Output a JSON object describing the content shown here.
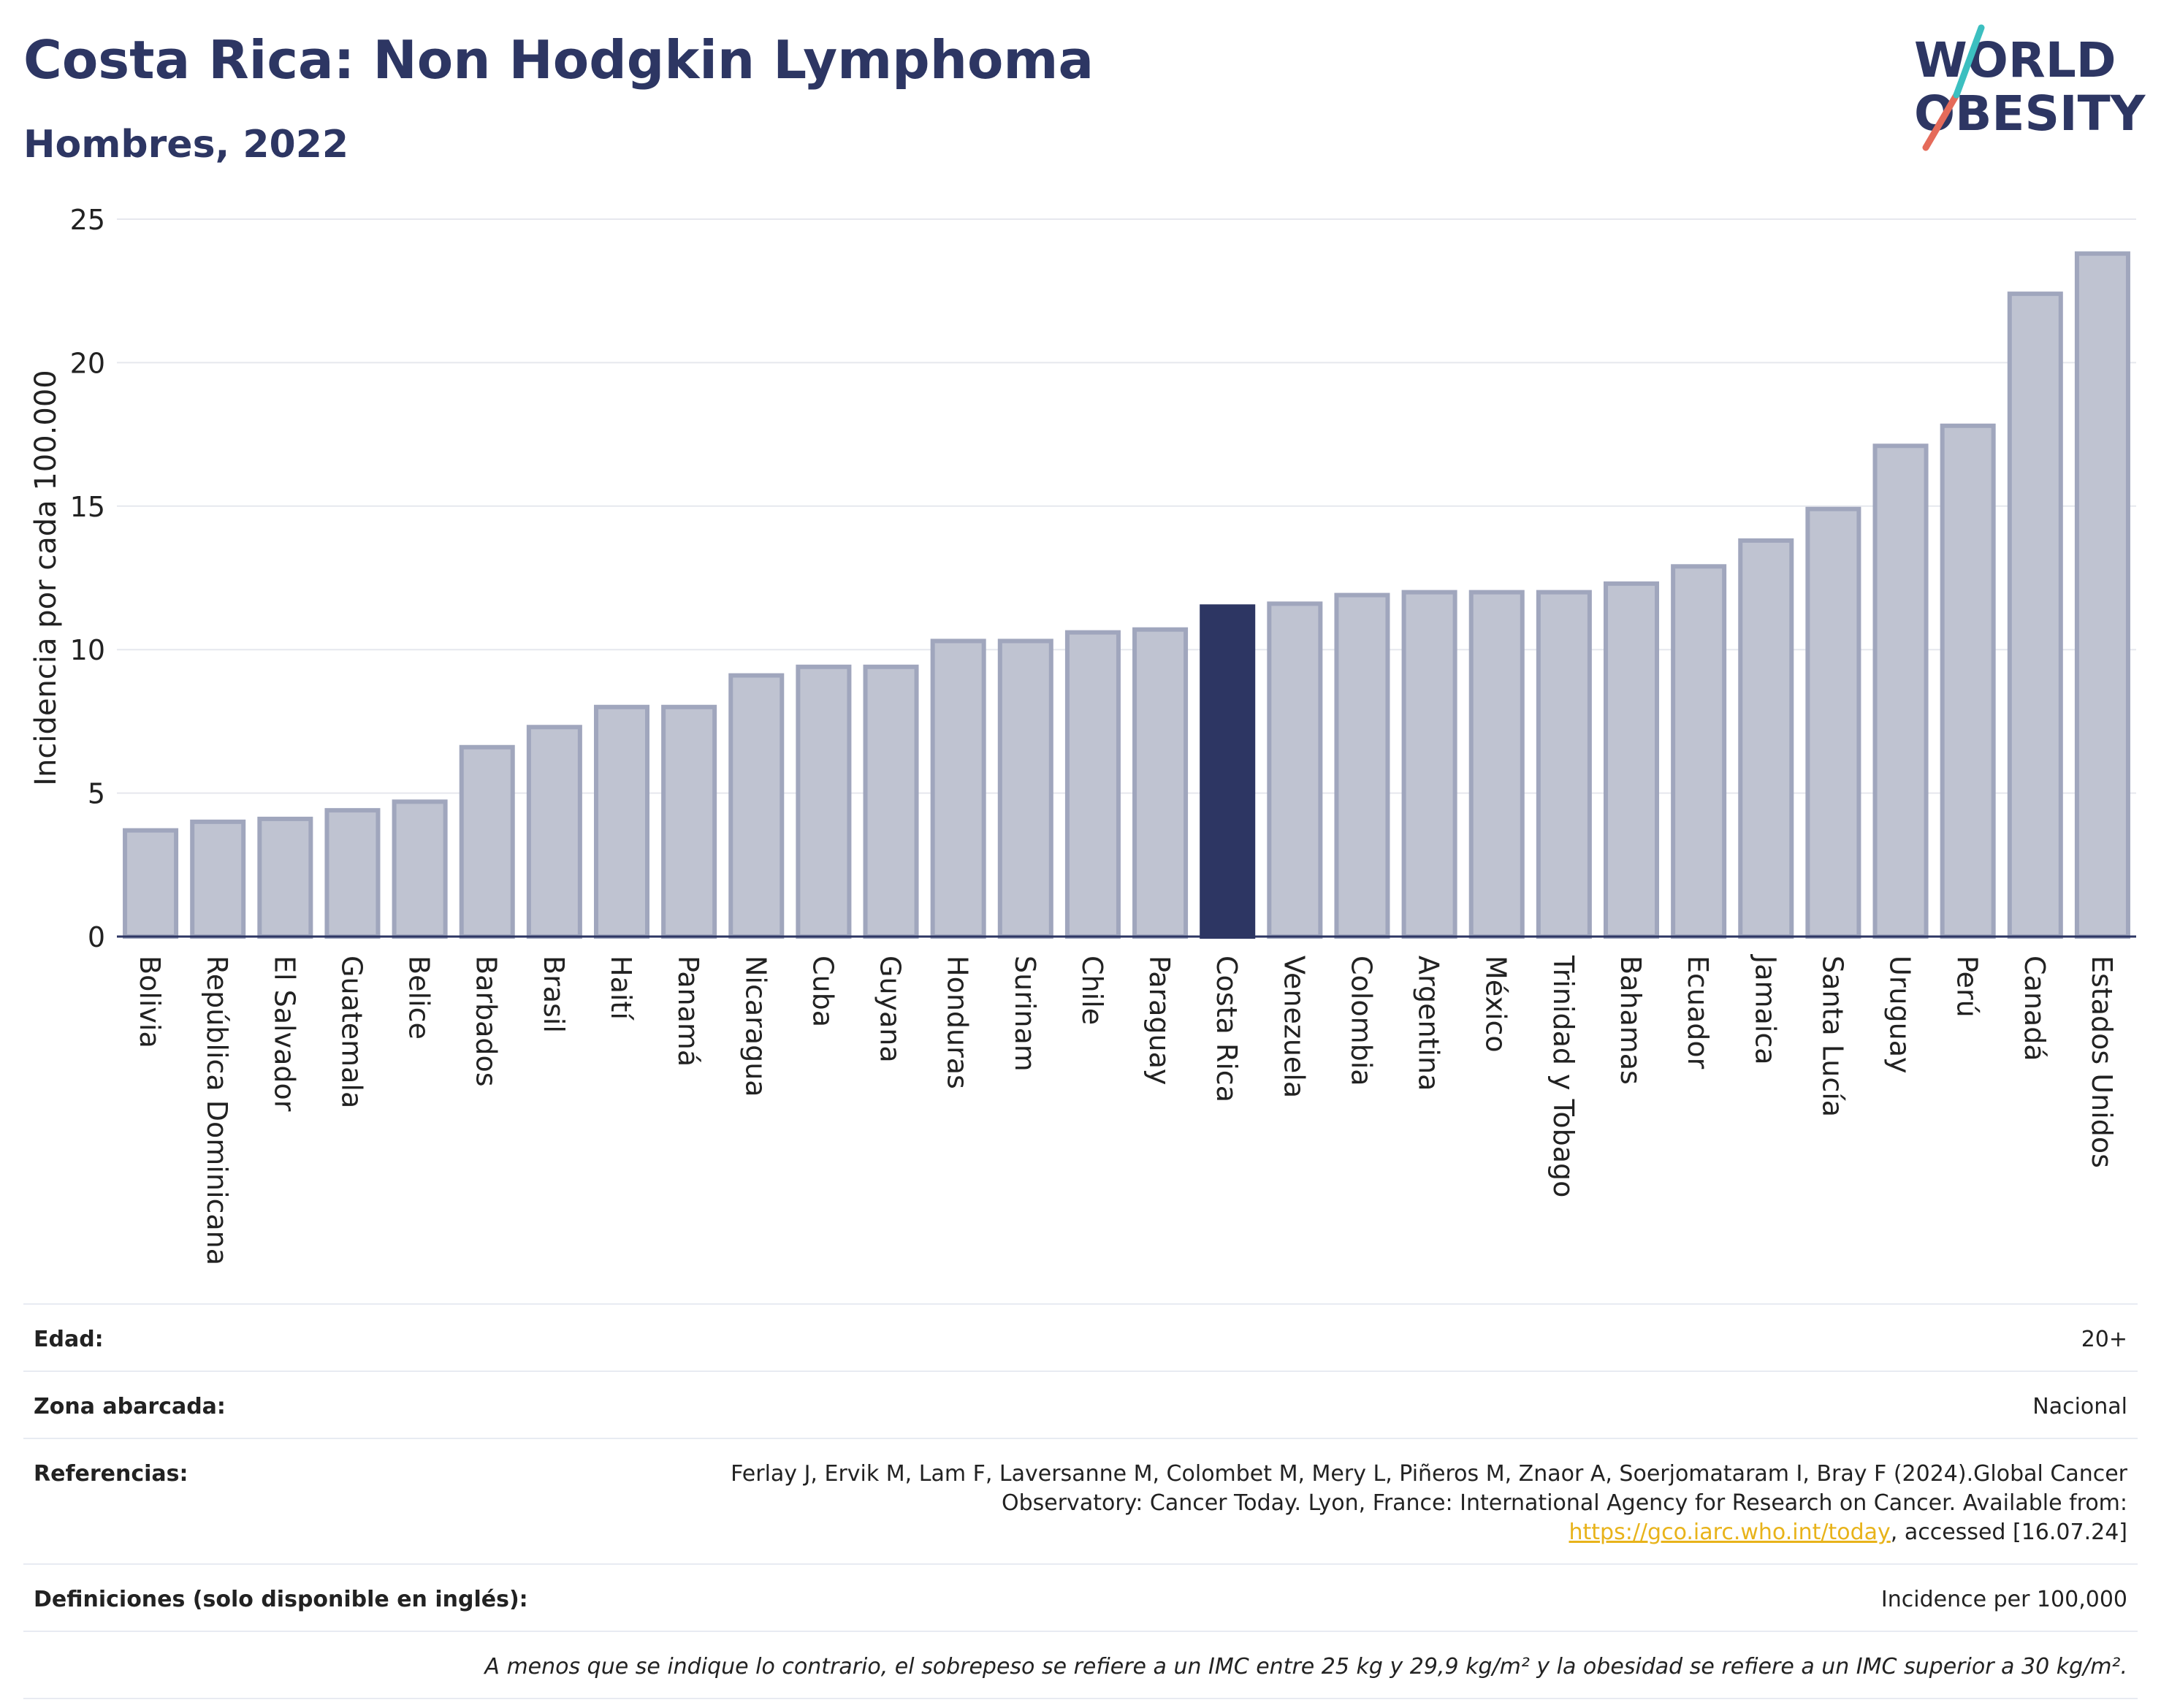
{
  "title": "Costa Rica: Non Hodgkin Lymphoma",
  "subtitle": "Hombres, 2022",
  "logo": {
    "line1": "WORLD",
    "line2": "OBESITY",
    "colors": [
      "#2d3663",
      "#e56b5a",
      "#3cbfc0"
    ]
  },
  "colors": {
    "bar": "#bfc3d1",
    "bar_outline": "#a0a6bd",
    "highlight": "#2d3663",
    "text": "#2d3663",
    "grid": "#e6e8ee"
  },
  "chart_data": {
    "type": "bar",
    "ylabel": "Incidencia por cada 100.000",
    "ylim": [
      0,
      25
    ],
    "yticks": [
      0,
      5,
      10,
      15,
      20,
      25
    ],
    "grid": true,
    "highlight": "Costa Rica",
    "categories": [
      "Bolivia",
      "República Dominicana",
      "El Salvador",
      "Guatemala",
      "Belice",
      "Barbados",
      "Brasil",
      "Haití",
      "Panamá",
      "Nicaragua",
      "Cuba",
      "Guyana",
      "Honduras",
      "Surinam",
      "Chile",
      "Paraguay",
      "Costa Rica",
      "Venezuela",
      "Colombia",
      "Argentina",
      "México",
      "Trinidad y Tobago",
      "Bahamas",
      "Ecuador",
      "Jamaica",
      "Santa Lucía",
      "Uruguay",
      "Perú",
      "Canadá",
      "Estados Unidos"
    ],
    "values": [
      3.7,
      4.0,
      4.1,
      4.4,
      4.7,
      6.6,
      7.3,
      8.0,
      8.0,
      9.1,
      9.4,
      9.4,
      10.3,
      10.3,
      10.6,
      10.7,
      11.5,
      11.6,
      11.9,
      12.0,
      12.0,
      12.0,
      12.3,
      12.9,
      13.8,
      14.9,
      17.1,
      17.8,
      22.4,
      23.8
    ]
  },
  "info": {
    "age_label": "Edad:",
    "age_value": "20+",
    "zone_label": "Zona abarcada:",
    "zone_value": "Nacional",
    "refs_label": "Referencias:",
    "refs_text": "Ferlay J, Ervik M, Lam F, Laversanne M, Colombet M, Mery L, Piñeros M, Znaor A, Soerjomataram I, Bray F (2024).Global Cancer Observatory: Cancer Today. Lyon, France: International Agency for Research on Cancer. Available from: ",
    "refs_link": "https://gco.iarc.who.int/today",
    "refs_tail": ", accessed [16.07.24]",
    "defs_label": "Definiciones (solo disponible en inglés):",
    "defs_value": "Incidence per 100,000",
    "footnote": "A menos que se indique lo contrario, el sobrepeso se refiere a un IMC entre 25 kg y 29,9 kg/m² y la obesidad se refiere a un IMC superior a 30 kg/m²."
  }
}
